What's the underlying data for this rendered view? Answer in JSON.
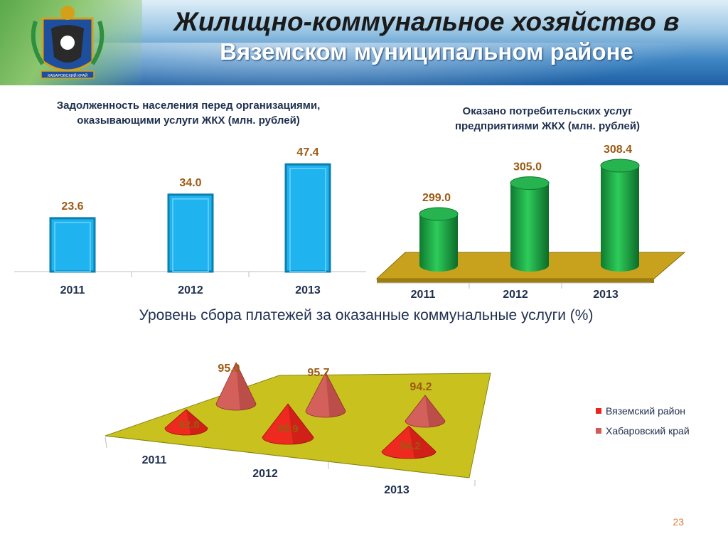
{
  "header": {
    "title_line1": "Жилищно-коммунальное хозяйство в",
    "title_line2": "Вяземском муниципальном районе",
    "emblem_text": "ХАБАРОВСКИЙ КРАЙ"
  },
  "chart_data": [
    {
      "type": "bar",
      "title": "Задолженность населения перед организациями, оказывающими услуги ЖКХ (млн. рублей)",
      "categories": [
        "2011",
        "2012",
        "2013"
      ],
      "values": [
        23.6,
        34.0,
        47.4
      ],
      "value_labels": [
        "23.6",
        "34.0",
        "47.4"
      ],
      "ylim": [
        0,
        55
      ],
      "bar_color": "#1fb4f0"
    },
    {
      "type": "bar",
      "title": "Оказано потребительских услуг предприятиями ЖКХ (млн. рублей)",
      "categories": [
        "2011",
        "2012",
        "2013"
      ],
      "values": [
        299.0,
        305.0,
        308.4
      ],
      "value_labels": [
        "299.0",
        "305.0",
        "308.4"
      ],
      "bar_color": "#1fa64a",
      "floor_color": "#c8a21c"
    },
    {
      "type": "bar",
      "title": "Уровень сбора платежей за оказанные коммунальные услуги (%)",
      "categories": [
        "2011",
        "2012",
        "2013"
      ],
      "series": [
        {
          "name": "Вяземский район",
          "values": [
            92.8,
            95.9,
            94.2
          ],
          "labels": [
            "92.8",
            "95.9",
            "94.2"
          ],
          "color": "#e8241c"
        },
        {
          "name": "Хабаровский край",
          "values": [
            95.0,
            95.7,
            94.2
          ],
          "labels": [
            "95.0",
            "95.7",
            "94.2"
          ],
          "color": "#d05a55"
        }
      ],
      "legend": "right",
      "floor_color": "#c9c21e"
    }
  ],
  "footer": {
    "page_number": "23"
  }
}
